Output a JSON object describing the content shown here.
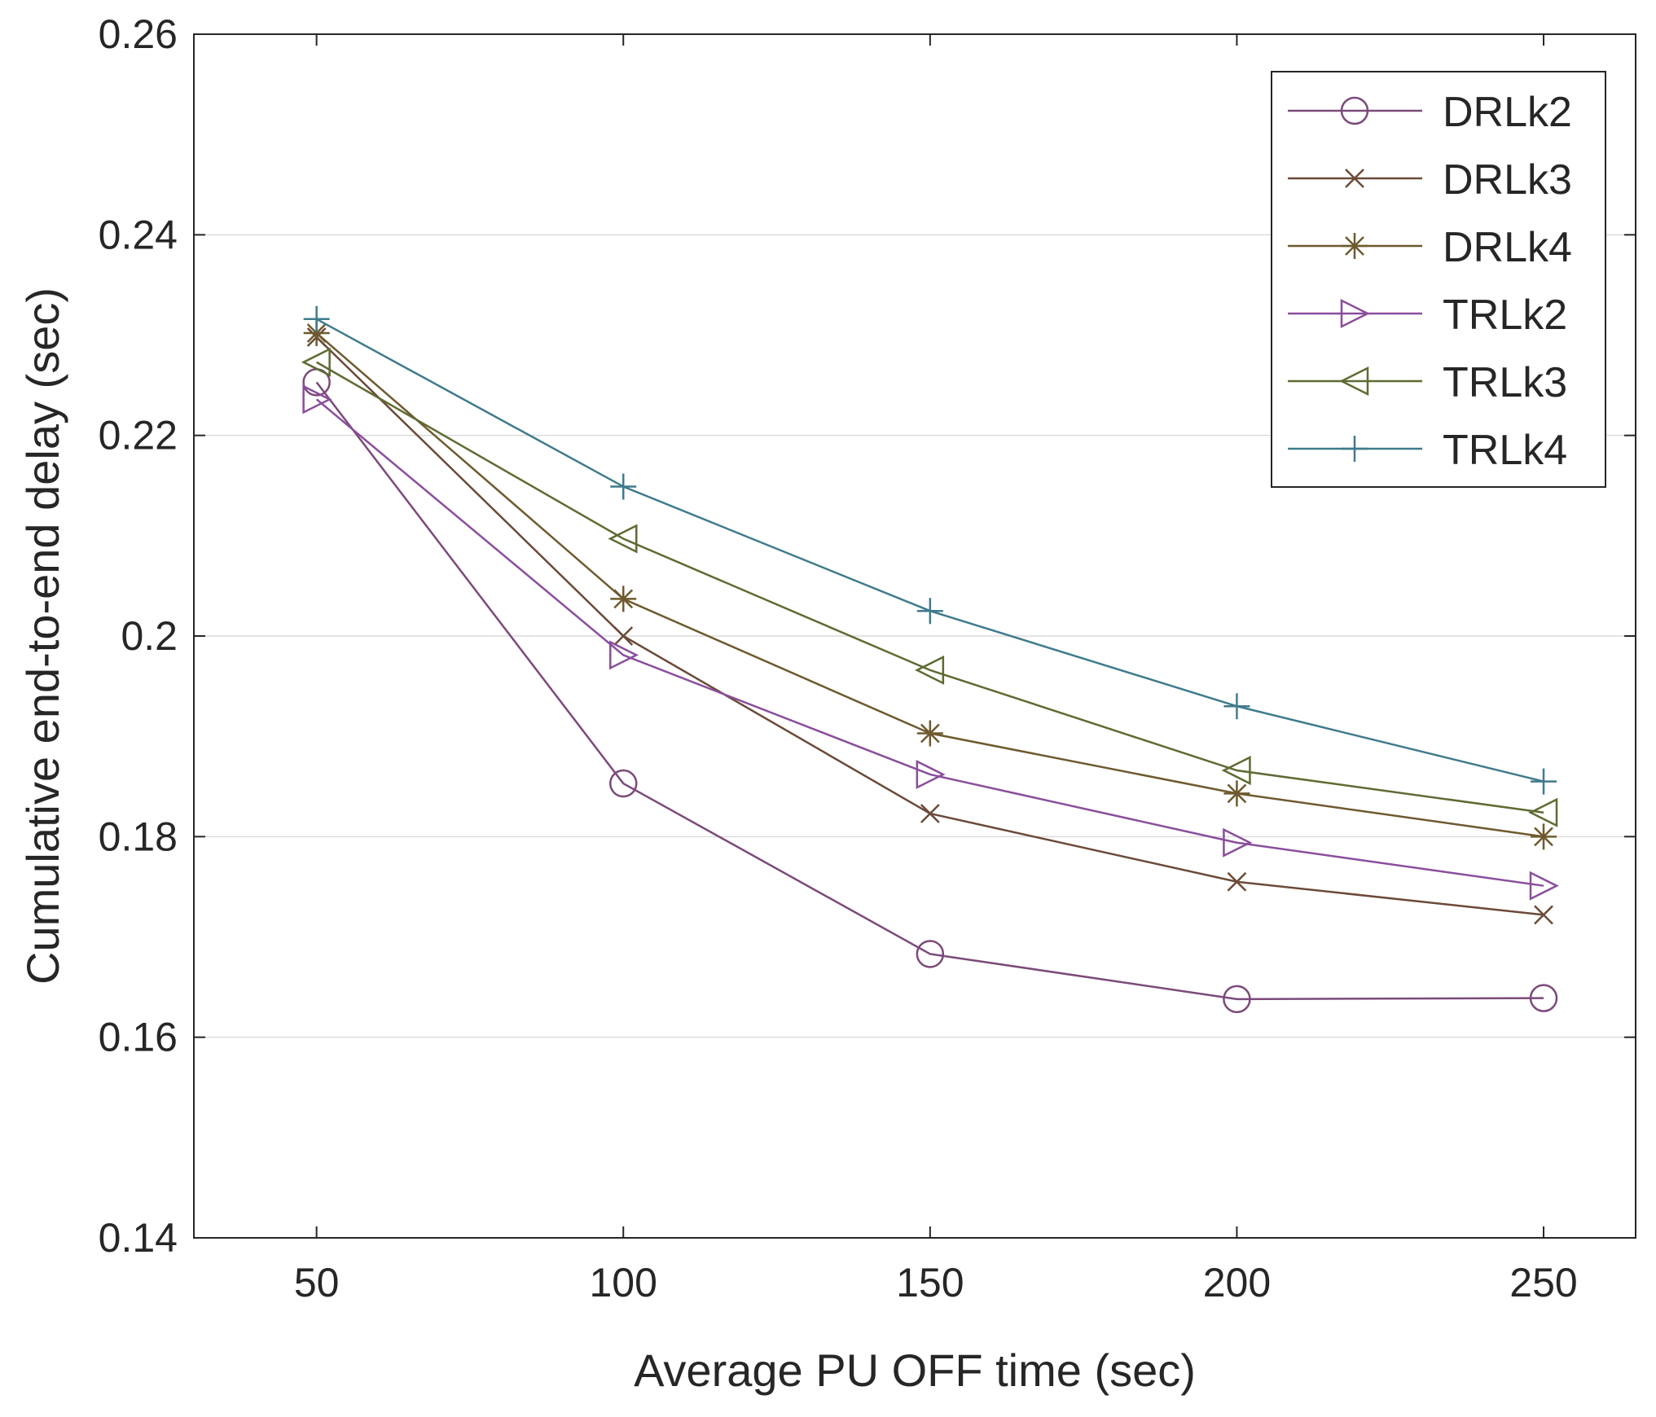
{
  "chart_data": {
    "type": "line",
    "title": "",
    "xlabel": "Average PU OFF time (sec)",
    "ylabel": "Cumulative end-to-end delay (sec)",
    "xlim": [
      30,
      265
    ],
    "ylim": [
      0.14,
      0.26
    ],
    "x": [
      50,
      100,
      150,
      200,
      250
    ],
    "xticks": [
      "50",
      "100",
      "150",
      "200",
      "250"
    ],
    "yticks": [
      "0.14",
      "0.16",
      "0.18",
      "0.2",
      "0.22",
      "0.24",
      "0.26"
    ],
    "grid": "horizontal",
    "legend_position": "top-right",
    "series": [
      {
        "name": "DRLk2",
        "marker": "circle",
        "color": "#7b4a7a",
        "values": [
          0.2253,
          0.1853,
          0.1683,
          0.1638,
          0.1639
        ]
      },
      {
        "name": "DRLk3",
        "marker": "x",
        "color": "#6b4a38",
        "values": [
          0.2298,
          0.2,
          0.1823,
          0.1755,
          0.1722
        ]
      },
      {
        "name": "DRLk4",
        "marker": "star",
        "color": "#6e5a2e",
        "values": [
          0.2302,
          0.2037,
          0.1903,
          0.1843,
          0.18
        ]
      },
      {
        "name": "TRLk2",
        "marker": "triangle-right",
        "color": "#8a4e9c",
        "values": [
          0.2236,
          0.1981,
          0.1862,
          0.1794,
          0.1751
        ]
      },
      {
        "name": "TRLk3",
        "marker": "triangle-left",
        "color": "#5e6b32",
        "values": [
          0.2273,
          0.2097,
          0.1966,
          0.1866,
          0.1824
        ]
      },
      {
        "name": "TRLk4",
        "marker": "plus",
        "color": "#3f7b8c",
        "values": [
          0.2316,
          0.2149,
          0.2025,
          0.193,
          0.1855
        ]
      }
    ]
  }
}
